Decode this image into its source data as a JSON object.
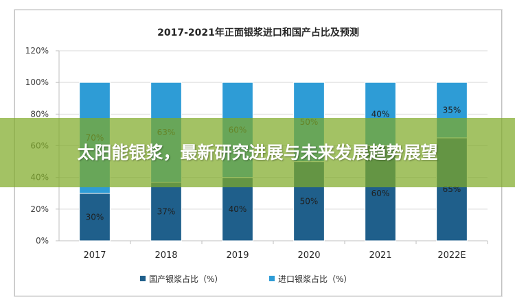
{
  "colors": {
    "domestic": "#1f5f8b",
    "import": "#2e9cd6",
    "grid": "#d9d9d9",
    "overlay": "#80aa28"
  },
  "overlay": {
    "headline": "太阳能银浆，最新研究进展与未来发展趋势展望"
  },
  "chart_data": {
    "type": "bar",
    "stacked": true,
    "title": "2017-2021年正面银浆进口和国产占比及预测",
    "xlabel": "",
    "ylabel": "",
    "categories": [
      "2017",
      "2018",
      "2019",
      "2020",
      "2021",
      "2022E"
    ],
    "ylim": [
      0,
      120
    ],
    "yticks": [
      "0%",
      "20%",
      "40%",
      "60%",
      "80%",
      "100%",
      "120%"
    ],
    "grid": true,
    "legend_position": "bottom",
    "series": [
      {
        "name": "国产银浆占比（%）",
        "values": [
          30,
          37,
          40,
          50,
          60,
          65
        ],
        "labels": [
          "30%",
          "37%",
          "40%",
          "50%",
          "60%",
          "65%"
        ]
      },
      {
        "name": "进口银浆占比（%）",
        "values": [
          70,
          63,
          60,
          50,
          40,
          35
        ],
        "labels": [
          "70%",
          "63%",
          "60%",
          "50%",
          "40%",
          "35%"
        ]
      }
    ]
  }
}
